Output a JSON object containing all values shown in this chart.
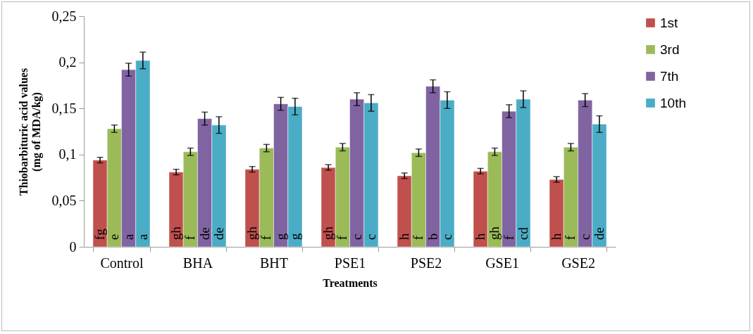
{
  "chart_data": {
    "type": "bar",
    "xlabel": "Treatments",
    "ylabel": "Thiobarbituric acid values\n(mg of MDA/kg)",
    "categories": [
      "Control",
      "BHA",
      "BHT",
      "PSE1",
      "PSE2",
      "GSE1",
      "GSE2"
    ],
    "series": [
      {
        "name": "1st",
        "color": "#c0504d",
        "values": [
          0.094,
          0.081,
          0.084,
          0.086,
          0.077,
          0.082,
          0.073
        ],
        "errors": [
          0.003,
          0.003,
          0.003,
          0.003,
          0.003,
          0.003,
          0.003
        ],
        "value_labels": [
          "fg",
          "gh",
          "gh",
          "gh",
          "h",
          "h",
          "h"
        ]
      },
      {
        "name": "3rd",
        "color": "#9bbb59",
        "values": [
          0.128,
          0.103,
          0.107,
          0.108,
          0.102,
          0.103,
          0.108
        ],
        "errors": [
          0.004,
          0.004,
          0.004,
          0.004,
          0.004,
          0.004,
          0.004
        ],
        "value_labels": [
          "e",
          "f",
          "f",
          "f",
          "f",
          "gh",
          "f"
        ]
      },
      {
        "name": "7th",
        "color": "#8064a2",
        "values": [
          0.192,
          0.139,
          0.155,
          0.16,
          0.174,
          0.147,
          0.159
        ],
        "errors": [
          0.007,
          0.007,
          0.007,
          0.007,
          0.007,
          0.007,
          0.007
        ],
        "value_labels": [
          "a",
          "de",
          "g",
          "c",
          "b",
          "f",
          "c"
        ]
      },
      {
        "name": "10th",
        "color": "#4bacc6",
        "values": [
          0.202,
          0.132,
          0.152,
          0.156,
          0.159,
          0.16,
          0.133
        ],
        "errors": [
          0.009,
          0.009,
          0.009,
          0.009,
          0.009,
          0.009,
          0.009
        ],
        "value_labels": [
          "a",
          "de",
          "g",
          "c",
          "c",
          "cd",
          "de"
        ]
      }
    ],
    "ylim": [
      0,
      0.25
    ],
    "yticks": [
      0,
      {
        "value": 0.05,
        "label": "0,05"
      },
      {
        "value": 0.1,
        "label": "0,1"
      },
      {
        "value": 0.15,
        "label": "0,15"
      },
      {
        "value": 0.2,
        "label": "0,2"
      },
      {
        "value": 0.25,
        "label": "0,25"
      }
    ],
    "legend": "right",
    "grid": false
  }
}
